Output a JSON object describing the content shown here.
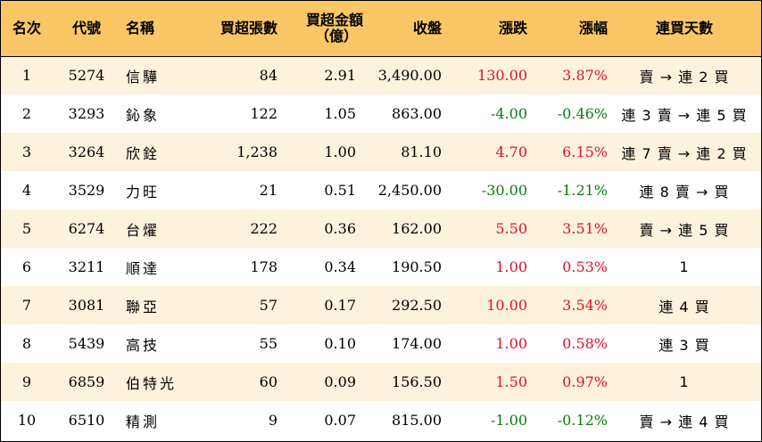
{
  "columns": {
    "rank": "名次",
    "code": "代號",
    "name": "名稱",
    "net_buy_lots": "買超張數",
    "net_buy_amount_line1": "買超金額",
    "net_buy_amount_line2": "（億）",
    "close": "收盤",
    "change": "漲跌",
    "change_pct": "漲幅",
    "streak": "連買天數"
  },
  "rows": [
    {
      "rank": "1",
      "code": "5274",
      "name": "信驊",
      "lots": "84",
      "amount": "2.91",
      "close": "3,490.00",
      "change": "130.00",
      "pct": "3.87%",
      "dir": "up",
      "streak": "賣 → 連 2 買"
    },
    {
      "rank": "2",
      "code": "3293",
      "name": "鈊象",
      "lots": "122",
      "amount": "1.05",
      "close": "863.00",
      "change": "-4.00",
      "pct": "-0.46%",
      "dir": "down",
      "streak": "連 3 賣 → 連 5 買"
    },
    {
      "rank": "3",
      "code": "3264",
      "name": "欣銓",
      "lots": "1,238",
      "amount": "1.00",
      "close": "81.10",
      "change": "4.70",
      "pct": "6.15%",
      "dir": "up",
      "streak": "連 7 賣 → 連 2 買"
    },
    {
      "rank": "4",
      "code": "3529",
      "name": "力旺",
      "lots": "21",
      "amount": "0.51",
      "close": "2,450.00",
      "change": "-30.00",
      "pct": "-1.21%",
      "dir": "down",
      "streak": "連 8 賣 → 買"
    },
    {
      "rank": "5",
      "code": "6274",
      "name": "台燿",
      "lots": "222",
      "amount": "0.36",
      "close": "162.00",
      "change": "5.50",
      "pct": "3.51%",
      "dir": "up",
      "streak": "賣 → 連 5 買"
    },
    {
      "rank": "6",
      "code": "3211",
      "name": "順達",
      "lots": "178",
      "amount": "0.34",
      "close": "190.50",
      "change": "1.00",
      "pct": "0.53%",
      "dir": "up",
      "streak": "1"
    },
    {
      "rank": "7",
      "code": "3081",
      "name": "聯亞",
      "lots": "57",
      "amount": "0.17",
      "close": "292.50",
      "change": "10.00",
      "pct": "3.54%",
      "dir": "up",
      "streak": "連 4 買"
    },
    {
      "rank": "8",
      "code": "5439",
      "name": "高技",
      "lots": "55",
      "amount": "0.10",
      "close": "174.00",
      "change": "1.00",
      "pct": "0.58%",
      "dir": "up",
      "streak": "連 3 買"
    },
    {
      "rank": "9",
      "code": "6859",
      "name": "伯特光",
      "lots": "60",
      "amount": "0.09",
      "close": "156.50",
      "change": "1.50",
      "pct": "0.97%",
      "dir": "up",
      "streak": "1"
    },
    {
      "rank": "10",
      "code": "6510",
      "name": "精測",
      "lots": "9",
      "amount": "0.07",
      "close": "815.00",
      "change": "-1.00",
      "pct": "-0.12%",
      "dir": "down",
      "streak": "賣 → 連 4 買"
    }
  ],
  "colors": {
    "header_bg": "#fac666",
    "odd_row_bg": "#fdf2dc",
    "even_row_bg": "#ffffff",
    "up": "#e0102a",
    "down": "#0a7a12"
  }
}
